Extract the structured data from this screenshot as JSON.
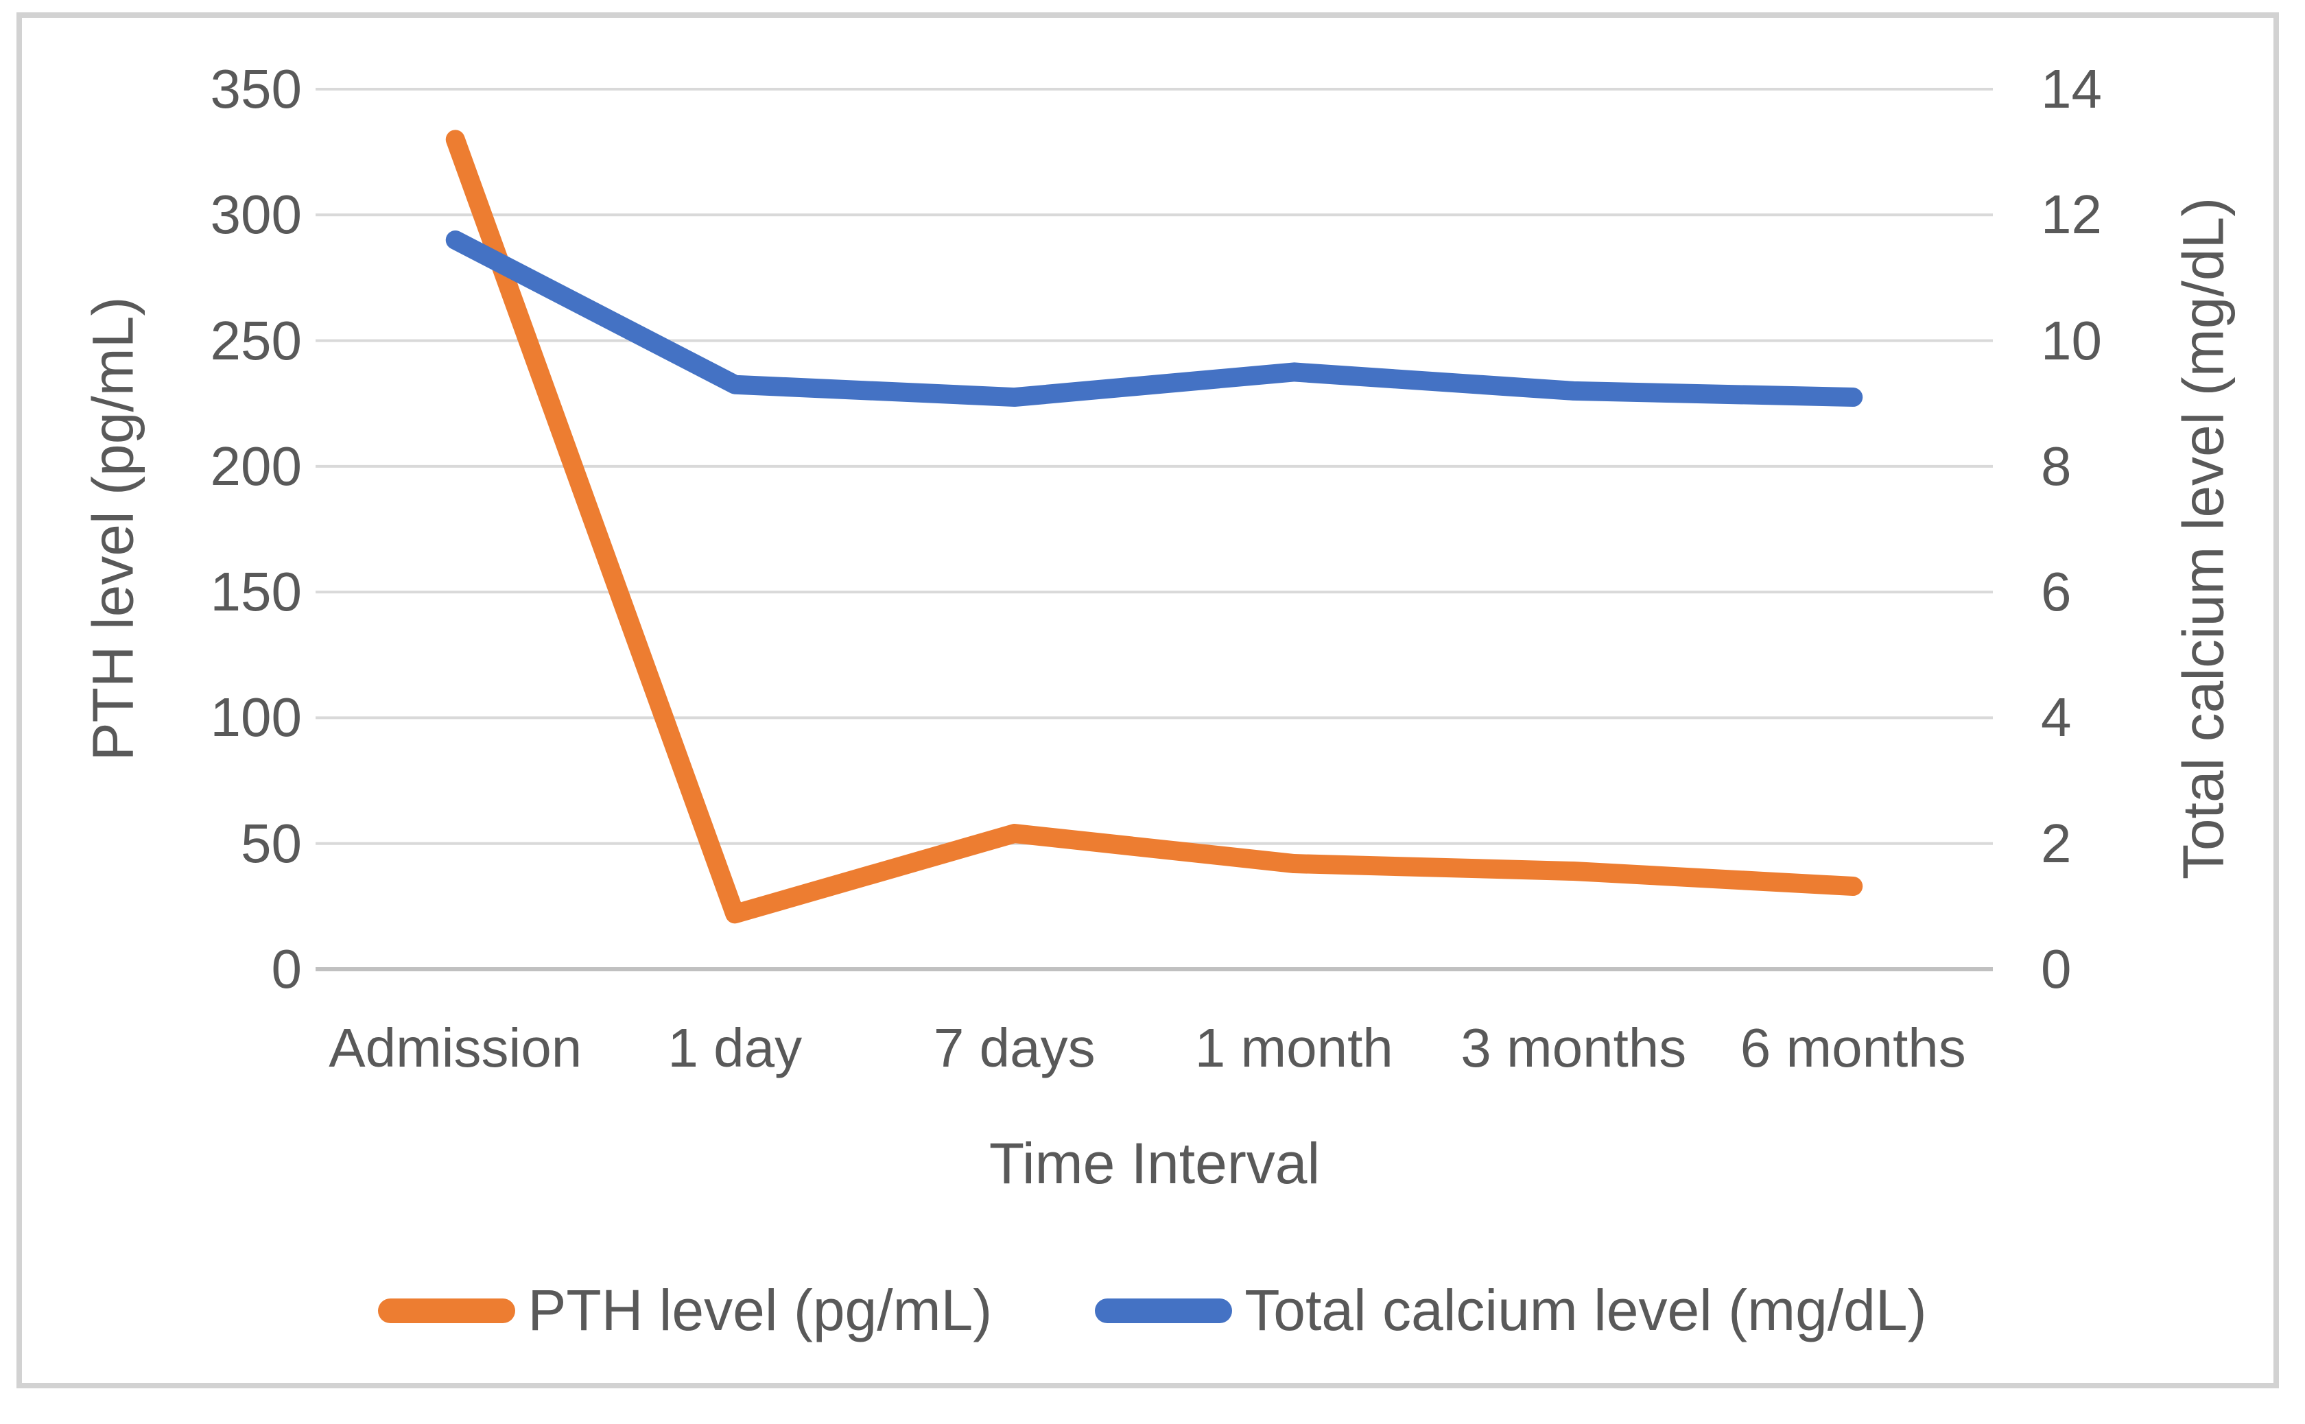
{
  "chart_data": {
    "type": "line",
    "categories": [
      "Admission",
      "1 day",
      "7 days",
      "1 month",
      "3 months",
      "6 months"
    ],
    "series": [
      {
        "name": "PTH level (pg/mL)",
        "axis": "left",
        "color": "#ED7D31",
        "values": [
          330,
          22,
          54,
          42,
          39,
          33
        ]
      },
      {
        "name": "Total calcium level (mg/dL)",
        "axis": "right",
        "color": "#4472C4",
        "values": [
          11.6,
          9.3,
          9.1,
          9.5,
          9.2,
          9.1
        ]
      }
    ],
    "left_axis": {
      "title": "PTH level (pg/mL)",
      "min": 0,
      "max": 350,
      "step": 50,
      "ticks": [
        350,
        300,
        250,
        200,
        150,
        100,
        50,
        0
      ]
    },
    "right_axis": {
      "title": "Total calcium level (mg/dL)",
      "min": 0,
      "max": 14,
      "step": 2,
      "ticks": [
        14,
        12,
        10,
        8,
        6,
        4,
        2,
        0
      ]
    },
    "x_axis": {
      "title": "Time Interval"
    },
    "legend": {
      "position": "bottom"
    },
    "grid": true,
    "layout": {
      "plot_left": 460,
      "plot_right": 2905,
      "plot_top": 130,
      "plot_bottom": 1413
    },
    "colors": {
      "grid_line": "#d9d9d9",
      "axis_line": "#c0c0c0",
      "text": "#595959",
      "frame_border": "#d2d2d2",
      "background": "#ffffff"
    }
  }
}
